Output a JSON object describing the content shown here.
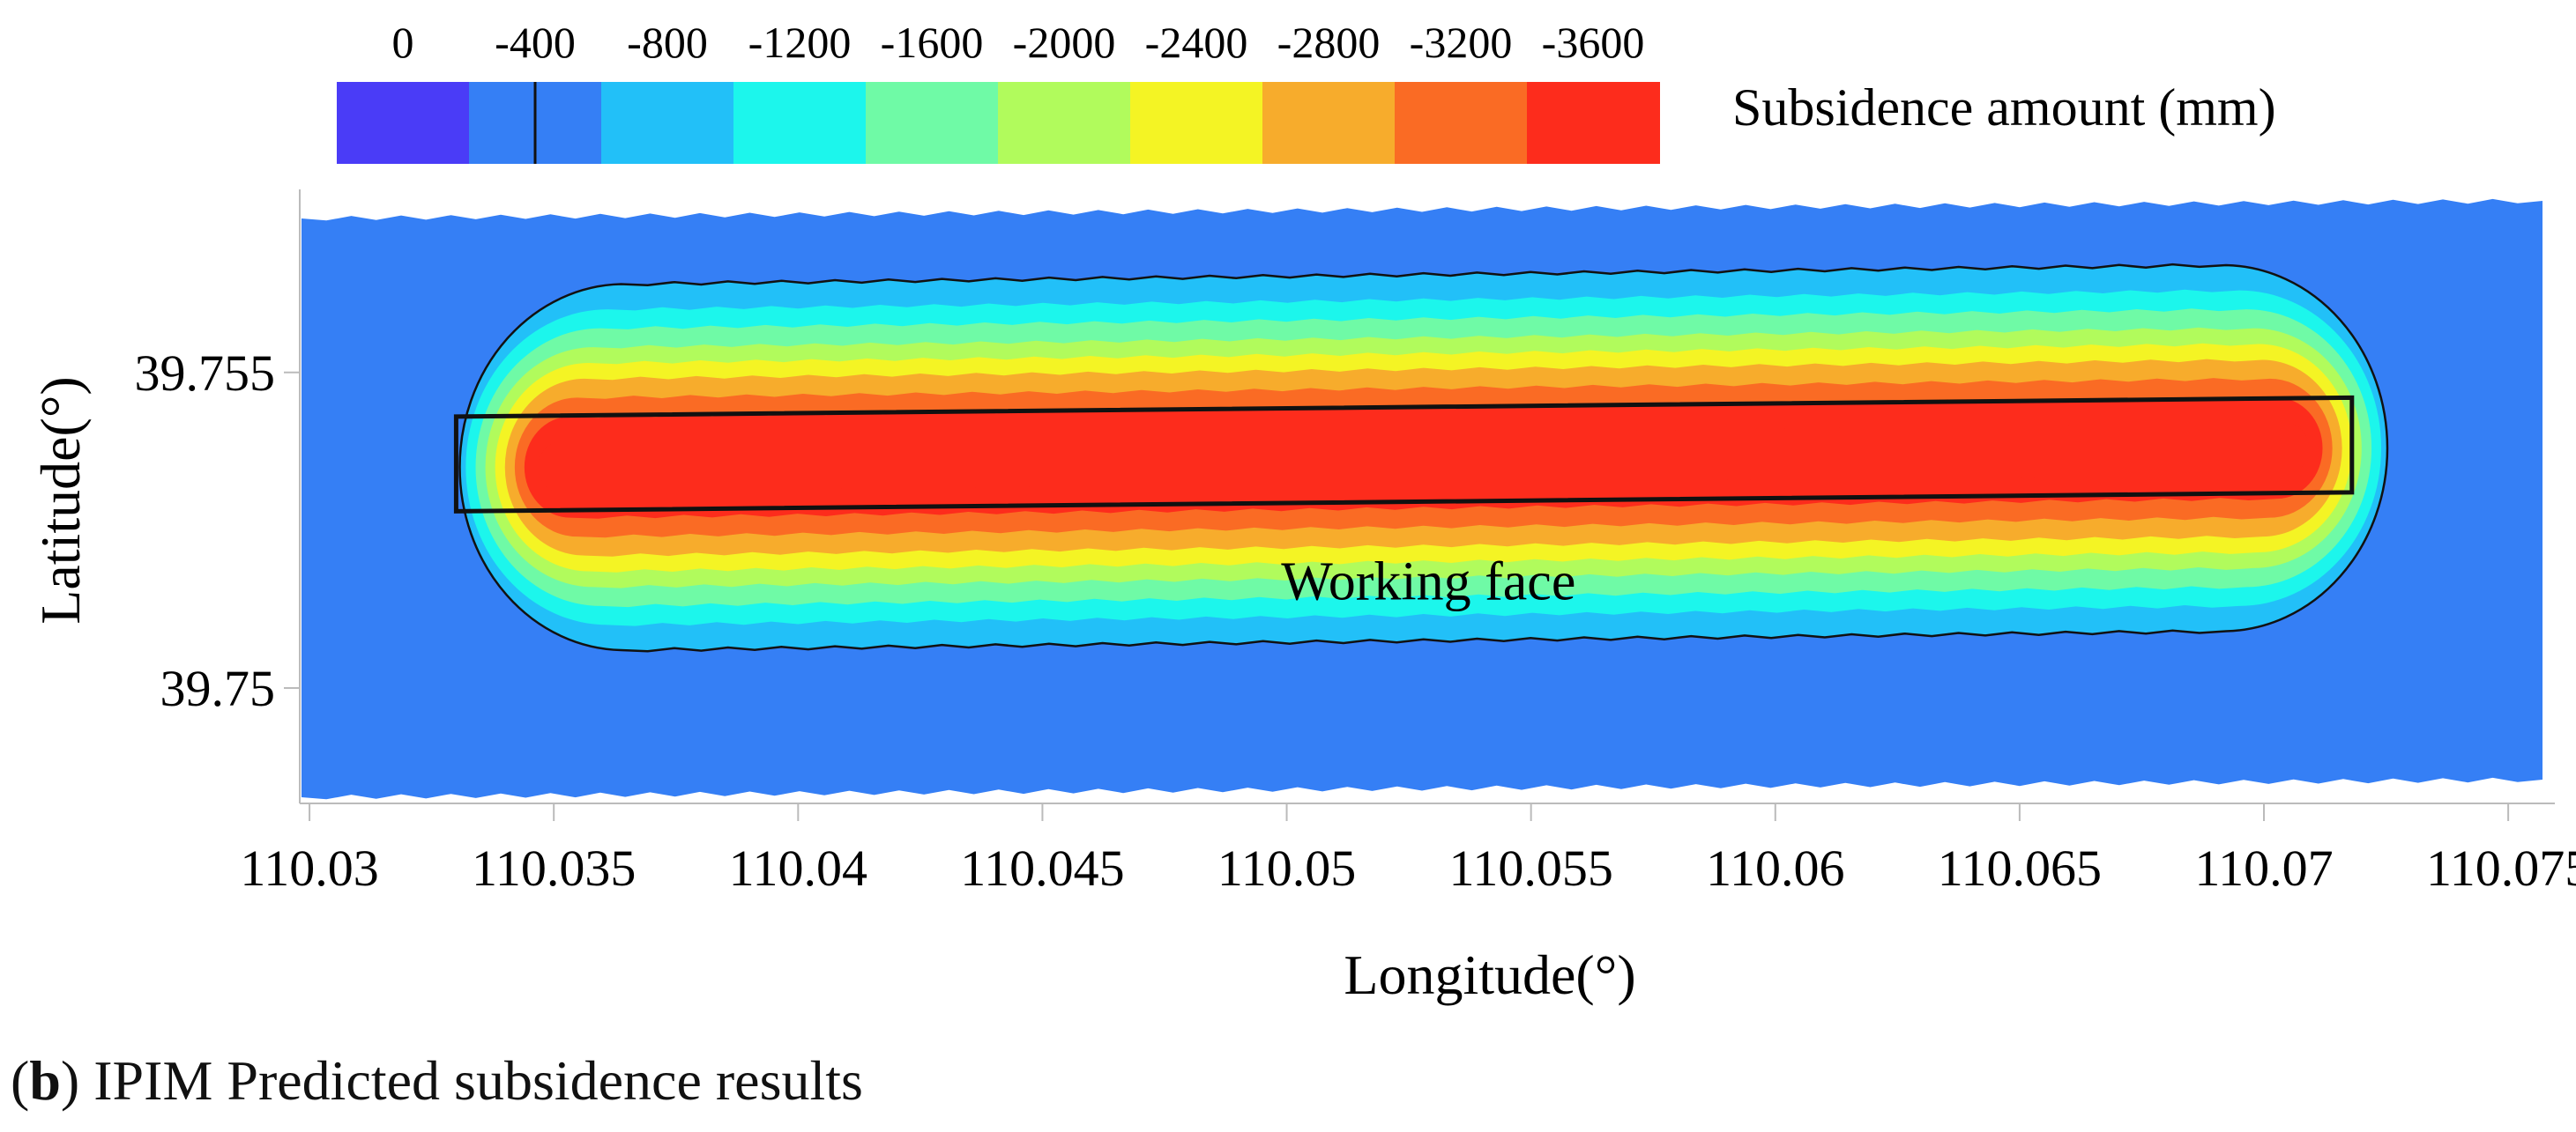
{
  "caption": {
    "open_paren": "(",
    "label": "b",
    "text": ") IPIM Predicted subsidence results"
  },
  "chart_data": {
    "type": "heatmap",
    "title": "",
    "xlabel": "Longitude(°)",
    "ylabel": "Latitude(°)",
    "xlim": [
      110.0298,
      110.0759
    ],
    "ylim": [
      39.7482,
      39.7579
    ],
    "x_ticks": [
      {
        "value": 110.03,
        "label": "110.03"
      },
      {
        "value": 110.035,
        "label": "110.035"
      },
      {
        "value": 110.04,
        "label": "110.04"
      },
      {
        "value": 110.045,
        "label": "110.045"
      },
      {
        "value": 110.05,
        "label": "110.05"
      },
      {
        "value": 110.055,
        "label": "110.055"
      },
      {
        "value": 110.06,
        "label": "110.06"
      },
      {
        "value": 110.065,
        "label": "110.065"
      },
      {
        "value": 110.07,
        "label": "110.07"
      },
      {
        "value": 110.075,
        "label": "110.075"
      }
    ],
    "y_ticks": [
      {
        "value": 39.755,
        "label": "39.755"
      },
      {
        "value": 39.75,
        "label": "39.75"
      }
    ],
    "colorbar": {
      "title": "Subsidence amount (mm)",
      "tick_labels": [
        "0",
        "-400",
        "-800",
        "-1200",
        "-1600",
        "-2000",
        "-2400",
        "-2800",
        "-3200",
        "-3600"
      ],
      "colors": [
        "#4a3cf7",
        "#357ff5",
        "#22c0f8",
        "#1cf6ec",
        "#6ffaa6",
        "#b1fb5c",
        "#f4f424",
        "#f7ac2c",
        "#fa6b24",
        "#fd2c1c"
      ],
      "marker_value": -400
    },
    "background_value_mm": -400,
    "max_subsidence_mm": -3600,
    "working_face": {
      "label": "Working face",
      "corners": [
        {
          "lon": 110.033,
          "lat": 39.7543
        },
        {
          "lon": 110.0718,
          "lat": 39.7546
        },
        {
          "lon": 110.0718,
          "lat": 39.7531
        },
        {
          "lon": 110.033,
          "lat": 39.7528
        }
      ]
    },
    "trough": {
      "center_start": {
        "lon": 110.035,
        "lat": 39.7535
      },
      "center_end": {
        "lon": 110.0706,
        "lat": 39.7538
      },
      "level_half_widths_deg_lat": [
        0.0029,
        0.0025,
        0.0022,
        0.0019,
        0.00165,
        0.0014,
        0.0011,
        0.0008,
        0.0004
      ],
      "level_end_extensions_deg_lon": [
        0.002,
        0.0018,
        0.0016,
        0.0014,
        0.0012,
        0.001,
        0.0008,
        0.0006,
        0.00035
      ]
    }
  }
}
